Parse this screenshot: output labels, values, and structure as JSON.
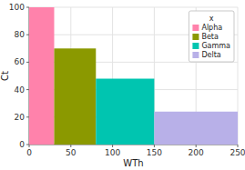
{
  "chart_data": {
    "type": "bar",
    "xlabel": "WTh",
    "ylabel": "Ct",
    "xlim": [
      0,
      250
    ],
    "ylim": [
      0,
      100
    ],
    "xticks": [
      0,
      50,
      100,
      150,
      200,
      250
    ],
    "yticks": [
      0,
      20,
      40,
      60,
      80,
      100
    ],
    "grid": true,
    "legend": "upper right",
    "legend_title": "x",
    "series": [
      {
        "name": "Alpha",
        "color": "#FF82AB",
        "bins": [
          0,
          30
        ],
        "values": [
          100
        ]
      },
      {
        "name": "Beta",
        "color": "#8B9900",
        "bins": [
          30,
          80
        ],
        "values": [
          70
        ]
      },
      {
        "name": "Gamma",
        "color": "#00C5B0",
        "bins": [
          80,
          150
        ],
        "values": [
          48
        ]
      },
      {
        "name": "Delta",
        "color": "#B8B0E8",
        "bins": [
          150,
          250
        ],
        "values": [
          24
        ]
      }
    ]
  }
}
